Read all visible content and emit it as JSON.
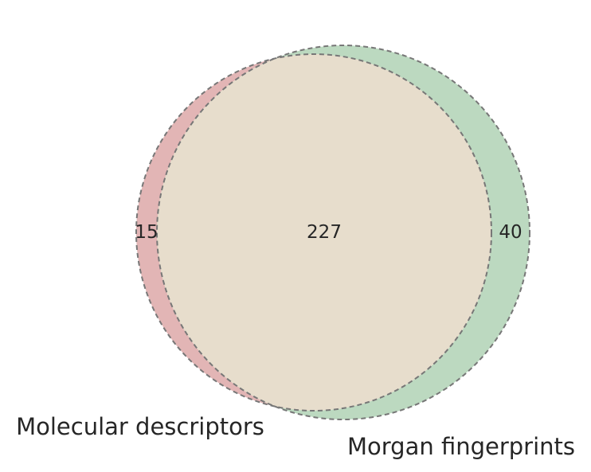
{
  "chart_data": {
    "type": "venn",
    "sets": [
      {
        "name": "Molecular descriptors",
        "size": 242,
        "color": "#e2b5b5"
      },
      {
        "name": "Morgan fingerprints",
        "size": 267,
        "color": "#bcd9c0"
      }
    ],
    "regions": {
      "only_molecular_descriptors": "15",
      "intersection": "227",
      "only_morgan_fingerprints": "40"
    },
    "intersection_color": "#e7ddcc",
    "outline": {
      "style": "dashed",
      "color": "#777777"
    }
  }
}
